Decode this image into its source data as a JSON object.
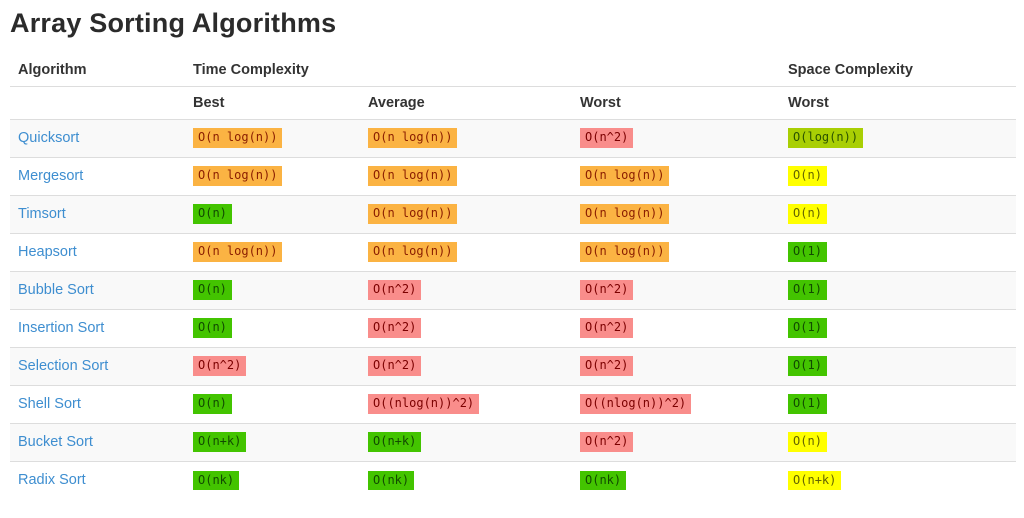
{
  "page": {
    "title": "Array Sorting Algorithms"
  },
  "table": {
    "header": {
      "algorithm": "Algorithm",
      "time_complexity": "Time Complexity",
      "space_complexity": "Space Complexity"
    },
    "subheader": {
      "best": "Best",
      "average": "Average",
      "worst": "Worst",
      "space_worst": "Worst"
    },
    "rows": [
      {
        "name": "Quicksort",
        "best": {
          "text": "O(n log(n))",
          "level": "orange"
        },
        "average": {
          "text": "O(n log(n))",
          "level": "orange"
        },
        "worst": {
          "text": "O(n^2)",
          "level": "red"
        },
        "space_worst": {
          "text": "O(log(n))",
          "level": "yellowgreen"
        }
      },
      {
        "name": "Mergesort",
        "best": {
          "text": "O(n log(n))",
          "level": "orange"
        },
        "average": {
          "text": "O(n log(n))",
          "level": "orange"
        },
        "worst": {
          "text": "O(n log(n))",
          "level": "orange"
        },
        "space_worst": {
          "text": "O(n)",
          "level": "yellow"
        }
      },
      {
        "name": "Timsort",
        "best": {
          "text": "O(n)",
          "level": "green"
        },
        "average": {
          "text": "O(n log(n))",
          "level": "orange"
        },
        "worst": {
          "text": "O(n log(n))",
          "level": "orange"
        },
        "space_worst": {
          "text": "O(n)",
          "level": "yellow"
        }
      },
      {
        "name": "Heapsort",
        "best": {
          "text": "O(n log(n))",
          "level": "orange"
        },
        "average": {
          "text": "O(n log(n))",
          "level": "orange"
        },
        "worst": {
          "text": "O(n log(n))",
          "level": "orange"
        },
        "space_worst": {
          "text": "O(1)",
          "level": "green"
        }
      },
      {
        "name": "Bubble Sort",
        "best": {
          "text": "O(n)",
          "level": "green"
        },
        "average": {
          "text": "O(n^2)",
          "level": "red"
        },
        "worst": {
          "text": "O(n^2)",
          "level": "red"
        },
        "space_worst": {
          "text": "O(1)",
          "level": "green"
        }
      },
      {
        "name": "Insertion Sort",
        "best": {
          "text": "O(n)",
          "level": "green"
        },
        "average": {
          "text": "O(n^2)",
          "level": "red"
        },
        "worst": {
          "text": "O(n^2)",
          "level": "red"
        },
        "space_worst": {
          "text": "O(1)",
          "level": "green"
        }
      },
      {
        "name": "Selection Sort",
        "best": {
          "text": "O(n^2)",
          "level": "red"
        },
        "average": {
          "text": "O(n^2)",
          "level": "red"
        },
        "worst": {
          "text": "O(n^2)",
          "level": "red"
        },
        "space_worst": {
          "text": "O(1)",
          "level": "green"
        }
      },
      {
        "name": "Shell Sort",
        "best": {
          "text": "O(n)",
          "level": "green"
        },
        "average": {
          "text": "O((nlog(n))^2)",
          "level": "red"
        },
        "worst": {
          "text": "O((nlog(n))^2)",
          "level": "red"
        },
        "space_worst": {
          "text": "O(1)",
          "level": "green"
        }
      },
      {
        "name": "Bucket Sort",
        "best": {
          "text": "O(n+k)",
          "level": "green"
        },
        "average": {
          "text": "O(n+k)",
          "level": "green"
        },
        "worst": {
          "text": "O(n^2)",
          "level": "red"
        },
        "space_worst": {
          "text": "O(n)",
          "level": "yellow"
        }
      },
      {
        "name": "Radix Sort",
        "best": {
          "text": "O(nk)",
          "level": "green"
        },
        "average": {
          "text": "O(nk)",
          "level": "green"
        },
        "worst": {
          "text": "O(nk)",
          "level": "green"
        },
        "space_worst": {
          "text": "O(n+k)",
          "level": "yellow"
        }
      }
    ]
  },
  "colors": {
    "link": "#3e8ed0",
    "stripe": "#f9f9f9",
    "row_border": "#dddddd",
    "header_text": "#333333",
    "levels": {
      "orange": {
        "bg": "#fbb343",
        "border": "#b70d02",
        "text": "#8a1d00"
      },
      "red": {
        "bg": "#f98d8b",
        "border": "#e60000",
        "text": "#7b0000"
      },
      "green": {
        "bg": "#43c400",
        "border": "#2b9400",
        "text": "#114a00"
      },
      "yellow": {
        "bg": "#ffff00",
        "border": "#b5b500",
        "text": "#636300"
      },
      "yellowgreen": {
        "bg": "#a9cf04",
        "border": "#33a100",
        "text": "#2a5200"
      }
    }
  }
}
